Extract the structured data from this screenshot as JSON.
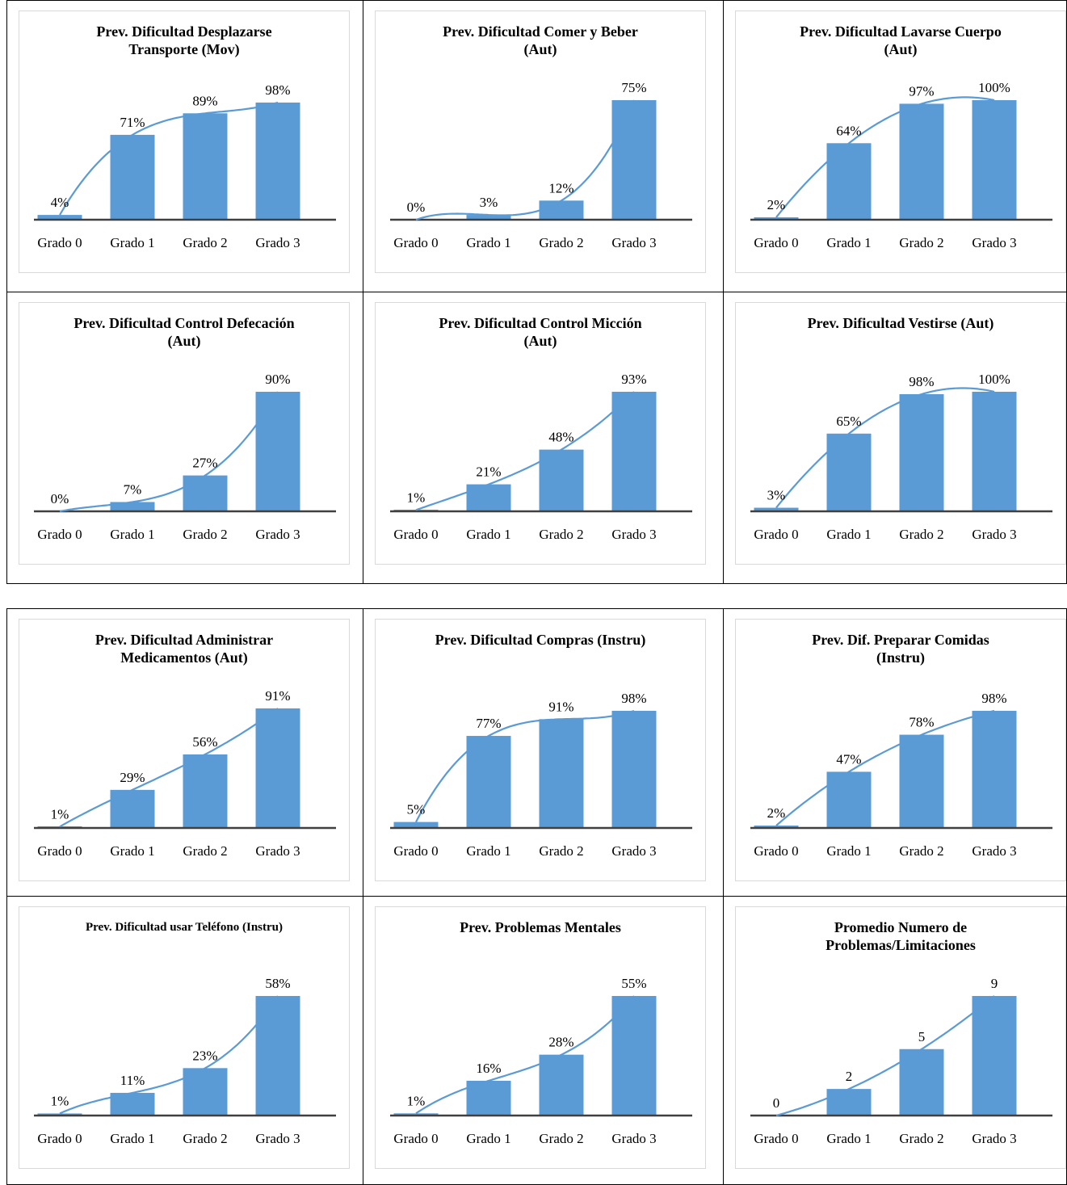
{
  "colors": {
    "bar": "#5b9bd5",
    "trend": "#5b9bd5",
    "axis": "#404040",
    "text": "#000000"
  },
  "chart_data": [
    {
      "type": "bar",
      "title": "Prev. Dificultad Desplazarse\nTransporte (Mov)",
      "categories": [
        "Grado 0",
        "Grado 1",
        "Grado 2",
        "Grado 3"
      ],
      "values": [
        4,
        71,
        89,
        98
      ],
      "labels": [
        "4%",
        "71%",
        "89%",
        "98%"
      ],
      "ylim": [
        0,
        100
      ],
      "trendline": "polynomial"
    },
    {
      "type": "bar",
      "title": "Prev. Dificultad Comer y Beber\n(Aut)",
      "categories": [
        "Grado 0",
        "Grado 1",
        "Grado 2",
        "Grado 3"
      ],
      "values": [
        0,
        3,
        12,
        75
      ],
      "labels": [
        "0%",
        "3%",
        "12%",
        "75%"
      ],
      "ylim": [
        0,
        75
      ],
      "trendline": "polynomial"
    },
    {
      "type": "bar",
      "title": "Prev. Dificultad Lavarse Cuerpo\n(Aut)",
      "categories": [
        "Grado 0",
        "Grado 1",
        "Grado 2",
        "Grado 3"
      ],
      "values": [
        2,
        64,
        97,
        100
      ],
      "labels": [
        "2%",
        "64%",
        "97%",
        "100%"
      ],
      "ylim": [
        0,
        100
      ],
      "trendline": "polynomial"
    },
    {
      "type": "bar",
      "title": "Prev. Dificultad Control Defecación\n(Aut)",
      "categories": [
        "Grado 0",
        "Grado 1",
        "Grado 2",
        "Grado 3"
      ],
      "values": [
        0,
        7,
        27,
        90
      ],
      "labels": [
        "0%",
        "7%",
        "27%",
        "90%"
      ],
      "ylim": [
        0,
        90
      ],
      "trendline": "polynomial"
    },
    {
      "type": "bar",
      "title": "Prev. Dificultad Control Micción\n(Aut)",
      "categories": [
        "Grado 0",
        "Grado 1",
        "Grado 2",
        "Grado 3"
      ],
      "values": [
        1,
        21,
        48,
        93
      ],
      "labels": [
        "1%",
        "21%",
        "48%",
        "93%"
      ],
      "ylim": [
        0,
        93
      ],
      "trendline": "polynomial"
    },
    {
      "type": "bar",
      "title": "Prev. Dificultad Vestirse (Aut)",
      "categories": [
        "Grado 0",
        "Grado 1",
        "Grado 2",
        "Grado 3"
      ],
      "values": [
        3,
        65,
        98,
        100
      ],
      "labels": [
        "3%",
        "65%",
        "98%",
        "100%"
      ],
      "ylim": [
        0,
        100
      ],
      "trendline": "polynomial"
    },
    {
      "type": "bar",
      "title": "Prev. Dificultad Administrar\nMedicamentos (Aut)",
      "categories": [
        "Grado 0",
        "Grado 1",
        "Grado 2",
        "Grado 3"
      ],
      "values": [
        1,
        29,
        56,
        91
      ],
      "labels": [
        "1%",
        "29%",
        "56%",
        "91%"
      ],
      "ylim": [
        0,
        91
      ],
      "trendline": "polynomial"
    },
    {
      "type": "bar",
      "title": "Prev. Dificultad Compras (Instru)",
      "categories": [
        "Grado 0",
        "Grado 1",
        "Grado 2",
        "Grado 3"
      ],
      "values": [
        5,
        77,
        91,
        98
      ],
      "labels": [
        "5%",
        "77%",
        "91%",
        "98%"
      ],
      "ylim": [
        0,
        100
      ],
      "trendline": "polynomial"
    },
    {
      "type": "bar",
      "title": "Prev. Dif. Preparar Comidas\n(Instru)",
      "categories": [
        "Grado 0",
        "Grado 1",
        "Grado 2",
        "Grado 3"
      ],
      "values": [
        2,
        47,
        78,
        98
      ],
      "labels": [
        "2%",
        "47%",
        "78%",
        "98%"
      ],
      "ylim": [
        0,
        100
      ],
      "trendline": "polynomial"
    },
    {
      "type": "bar",
      "title": "Prev. Dificultad usar Teléfono (Instru)",
      "categories": [
        "Grado 0",
        "Grado 1",
        "Grado 2",
        "Grado 3"
      ],
      "values": [
        1,
        11,
        23,
        58
      ],
      "labels": [
        "1%",
        "11%",
        "23%",
        "58%"
      ],
      "ylim": [
        0,
        58
      ],
      "trendline": "polynomial"
    },
    {
      "type": "bar",
      "title": "Prev. Problemas Mentales",
      "categories": [
        "Grado 0",
        "Grado 1",
        "Grado 2",
        "Grado 3"
      ],
      "values": [
        1,
        16,
        28,
        55
      ],
      "labels": [
        "1%",
        "16%",
        "28%",
        "55%"
      ],
      "ylim": [
        0,
        55
      ],
      "trendline": "polynomial"
    },
    {
      "type": "bar",
      "title": "Promedio Numero de\nProblemas/Limitaciones",
      "categories": [
        "Grado 0",
        "Grado 1",
        "Grado 2",
        "Grado 3"
      ],
      "values": [
        0,
        2,
        5,
        9
      ],
      "labels": [
        "0",
        "2",
        "5",
        "9"
      ],
      "ylim": [
        0,
        9
      ],
      "trendline": "polynomial"
    }
  ]
}
